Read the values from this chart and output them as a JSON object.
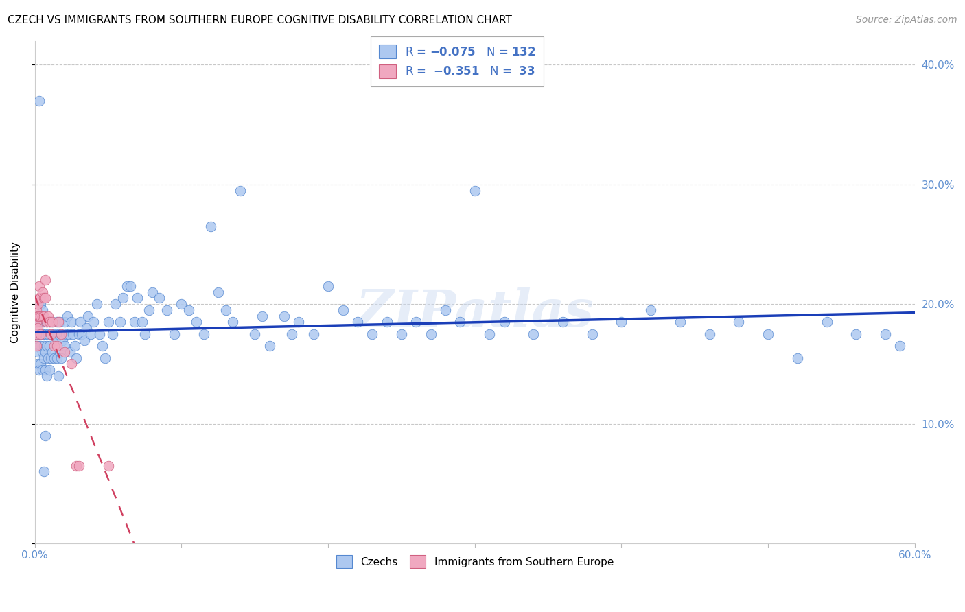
{
  "title": "CZECH VS IMMIGRANTS FROM SOUTHERN EUROPE COGNITIVE DISABILITY CORRELATION CHART",
  "source": "Source: ZipAtlas.com",
  "ylabel": "Cognitive Disability",
  "xlim": [
    0.0,
    0.6
  ],
  "ylim": [
    0.0,
    0.42
  ],
  "yticks": [
    0.0,
    0.1,
    0.2,
    0.3,
    0.4
  ],
  "ytick_labels": [
    "",
    "10.0%",
    "20.0%",
    "30.0%",
    "40.0%"
  ],
  "xticks": [
    0.0,
    0.1,
    0.2,
    0.3,
    0.4,
    0.5,
    0.6
  ],
  "xtick_labels": [
    "0.0%",
    "",
    "",
    "",
    "",
    "",
    "60.0%"
  ],
  "blue": {
    "name": "Czechs",
    "color": "#adc8f0",
    "edge_color": "#5588d0",
    "line_color": "#1a3eb8",
    "x": [
      0.001,
      0.001,
      0.001,
      0.002,
      0.002,
      0.002,
      0.003,
      0.003,
      0.003,
      0.003,
      0.004,
      0.004,
      0.004,
      0.005,
      0.005,
      0.005,
      0.006,
      0.006,
      0.006,
      0.007,
      0.007,
      0.007,
      0.008,
      0.008,
      0.008,
      0.009,
      0.009,
      0.01,
      0.01,
      0.01,
      0.011,
      0.011,
      0.012,
      0.012,
      0.013,
      0.013,
      0.014,
      0.015,
      0.015,
      0.016,
      0.016,
      0.017,
      0.017,
      0.018,
      0.018,
      0.019,
      0.02,
      0.02,
      0.021,
      0.022,
      0.023,
      0.024,
      0.025,
      0.026,
      0.027,
      0.028,
      0.03,
      0.031,
      0.032,
      0.034,
      0.035,
      0.036,
      0.038,
      0.04,
      0.042,
      0.044,
      0.046,
      0.048,
      0.05,
      0.053,
      0.055,
      0.058,
      0.06,
      0.063,
      0.065,
      0.068,
      0.07,
      0.073,
      0.075,
      0.078,
      0.08,
      0.085,
      0.09,
      0.095,
      0.1,
      0.105,
      0.11,
      0.115,
      0.12,
      0.125,
      0.13,
      0.135,
      0.14,
      0.15,
      0.155,
      0.16,
      0.17,
      0.175,
      0.18,
      0.19,
      0.2,
      0.21,
      0.22,
      0.23,
      0.24,
      0.25,
      0.26,
      0.27,
      0.28,
      0.29,
      0.3,
      0.31,
      0.32,
      0.34,
      0.36,
      0.38,
      0.4,
      0.42,
      0.44,
      0.46,
      0.48,
      0.5,
      0.52,
      0.54,
      0.56,
      0.58,
      0.59,
      0.003,
      0.004,
      0.005,
      0.006,
      0.007
    ],
    "y": [
      0.185,
      0.175,
      0.165,
      0.19,
      0.16,
      0.15,
      0.185,
      0.175,
      0.165,
      0.145,
      0.185,
      0.165,
      0.15,
      0.175,
      0.16,
      0.145,
      0.185,
      0.165,
      0.155,
      0.175,
      0.16,
      0.145,
      0.185,
      0.165,
      0.14,
      0.175,
      0.155,
      0.185,
      0.165,
      0.145,
      0.175,
      0.155,
      0.185,
      0.16,
      0.175,
      0.155,
      0.17,
      0.185,
      0.155,
      0.175,
      0.14,
      0.185,
      0.16,
      0.175,
      0.155,
      0.17,
      0.185,
      0.165,
      0.175,
      0.19,
      0.175,
      0.16,
      0.185,
      0.175,
      0.165,
      0.155,
      0.175,
      0.185,
      0.175,
      0.17,
      0.18,
      0.19,
      0.175,
      0.185,
      0.2,
      0.175,
      0.165,
      0.155,
      0.185,
      0.175,
      0.2,
      0.185,
      0.205,
      0.215,
      0.215,
      0.185,
      0.205,
      0.185,
      0.175,
      0.195,
      0.21,
      0.205,
      0.195,
      0.175,
      0.2,
      0.195,
      0.185,
      0.175,
      0.265,
      0.21,
      0.195,
      0.185,
      0.295,
      0.175,
      0.19,
      0.165,
      0.19,
      0.175,
      0.185,
      0.175,
      0.215,
      0.195,
      0.185,
      0.175,
      0.185,
      0.175,
      0.185,
      0.175,
      0.195,
      0.185,
      0.295,
      0.175,
      0.185,
      0.175,
      0.185,
      0.175,
      0.185,
      0.195,
      0.185,
      0.175,
      0.185,
      0.175,
      0.155,
      0.185,
      0.175,
      0.175,
      0.165,
      0.37,
      0.2,
      0.195,
      0.06,
      0.09
    ]
  },
  "pink": {
    "name": "Immigrants from Southern Europe",
    "color": "#f0a8c0",
    "edge_color": "#d06080",
    "line_color": "#d04060",
    "x": [
      0.001,
      0.001,
      0.001,
      0.001,
      0.002,
      0.002,
      0.002,
      0.003,
      0.003,
      0.003,
      0.004,
      0.004,
      0.004,
      0.005,
      0.005,
      0.006,
      0.006,
      0.007,
      0.007,
      0.008,
      0.009,
      0.01,
      0.011,
      0.012,
      0.013,
      0.015,
      0.016,
      0.018,
      0.02,
      0.025,
      0.028,
      0.03,
      0.05
    ],
    "y": [
      0.195,
      0.185,
      0.175,
      0.165,
      0.2,
      0.19,
      0.18,
      0.215,
      0.205,
      0.19,
      0.205,
      0.19,
      0.175,
      0.21,
      0.19,
      0.205,
      0.19,
      0.22,
      0.205,
      0.185,
      0.19,
      0.185,
      0.175,
      0.185,
      0.165,
      0.165,
      0.185,
      0.175,
      0.16,
      0.15,
      0.065,
      0.065,
      0.065
    ]
  },
  "watermark": "ZIPatlas",
  "title_fontsize": 11,
  "axis_label_fontsize": 11,
  "tick_fontsize": 11,
  "source_fontsize": 10,
  "marker_size": 110,
  "blue_color": "#4472c4",
  "pink_color": "#e07090",
  "axis_color": "#6090d0",
  "grid_color": "#c8c8c8"
}
